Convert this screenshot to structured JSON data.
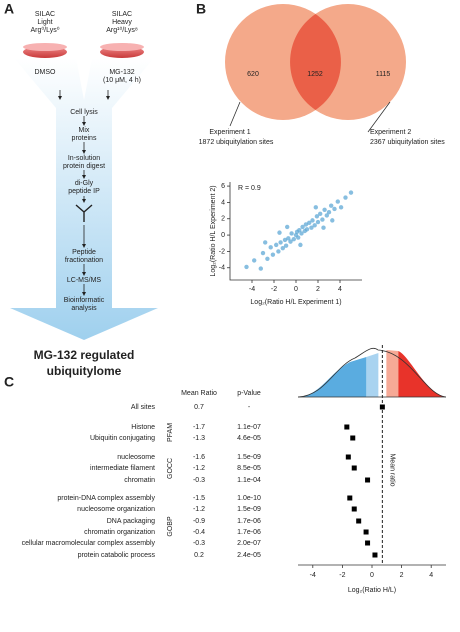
{
  "panels": {
    "a": "A",
    "b": "B",
    "c": "C"
  },
  "workflow": {
    "light": [
      "SILAC",
      "Light",
      "Arg⁰/Lys⁰"
    ],
    "light_treatment": [
      "DMSO"
    ],
    "heavy": [
      "SILAC",
      "Heavy",
      "Arg¹⁰/Lys⁸"
    ],
    "heavy_treatment": [
      "MG-132",
      "(10 μM, 4 h)"
    ],
    "steps": [
      [
        "Cell lysis"
      ],
      [
        "Mix",
        "proteins"
      ],
      [
        "In-solution",
        "protein digest"
      ],
      [
        "di-Gly",
        "peptide IP"
      ],
      [
        "Peptide",
        "fractionation"
      ],
      [
        "LC-MS/MS"
      ],
      [
        "Bioinformatic",
        "analysis"
      ]
    ],
    "result": [
      "MG-132 regulated",
      "ubiquitylome"
    ]
  },
  "venn": {
    "only_1": 620,
    "both": 1252,
    "only_2": 1115,
    "label_1": [
      "Experiment 1",
      "1872 ubiquitylation sites"
    ],
    "label_2": [
      "Experiment 2",
      "2367 ubiquitylation sites"
    ]
  },
  "chart_data": [
    {
      "type": "scatter",
      "annotation": "R = 0.9",
      "xlabel": "Log₂(Ratio H/L Experiment 1)",
      "ylabel": "Log₂(Ratio H/L Experiment 2)",
      "color": "#5fa8d6",
      "xlim": [
        -6,
        6
      ],
      "ylim": [
        -5.5,
        6.5
      ],
      "xticks": [
        -4,
        -2,
        0,
        2,
        4
      ],
      "yticks": [
        -4,
        -2,
        0,
        2,
        4,
        6
      ],
      "x": [
        -4.5,
        -3.8,
        -3.2,
        -3,
        -2.6,
        -2.3,
        -2.1,
        -1.8,
        -1.6,
        -1.4,
        -1.2,
        -1,
        -0.9,
        -0.7,
        -0.5,
        -0.4,
        -0.2,
        0,
        0.1,
        0.2,
        0.3,
        0.5,
        0.6,
        0.8,
        0.9,
        1,
        1.2,
        1.4,
        1.5,
        1.7,
        1.9,
        2,
        2.2,
        2.4,
        2.6,
        2.8,
        3,
        3.2,
        3.5,
        3.8,
        4.1,
        4.5,
        5,
        -2.8,
        -1.5,
        0.4,
        1.8,
        2.5,
        -0.8,
        3.3
      ],
      "y": [
        -3.9,
        -3.1,
        -4.1,
        -2.2,
        -2.9,
        -1.5,
        -2.4,
        -1.2,
        -2,
        -0.9,
        -1.6,
        -0.6,
        -1.3,
        -0.4,
        -0.8,
        0.2,
        -0.5,
        0,
        0.4,
        -0.3,
        0.6,
        0.2,
        1,
        0.5,
        1.3,
        0.7,
        1.5,
        0.9,
        1.8,
        1.2,
        2.3,
        1.6,
        2.6,
        1.9,
        3.1,
        2.4,
        2.8,
        3.6,
        3.2,
        4.1,
        3.4,
        4.6,
        5.2,
        -0.9,
        0.3,
        -1.2,
        3.4,
        0.9,
        1,
        1.8
      ]
    },
    {
      "type": "dot",
      "headers": [
        "Mean Ratio",
        "p-Value"
      ],
      "categories": [
        "All sites",
        "Histone",
        "Ubiquitin conjugating",
        "nucleosome",
        "intermediate filament",
        "chromatin",
        "protein-DNA complex assembly",
        "nucleosome organization",
        "DNA packaging",
        "chromatin organization",
        "cellular macromolecular complex assembly",
        "protein catabolic process"
      ],
      "values": [
        0.7,
        -1.7,
        -1.3,
        -1.6,
        -1.2,
        -0.3,
        -1.5,
        -1.2,
        -0.9,
        -0.4,
        -0.3,
        0.2
      ],
      "p_values": [
        "-",
        "1.1e-07",
        "4.6e-05",
        "1.5e-09",
        "8.5e-05",
        "1.1e-04",
        "1.0e-10",
        "1.5e-09",
        "1.7e-06",
        "1.7e-06",
        "2.0e-07",
        "2.4e-05"
      ],
      "groups": [
        {
          "name": "PFAM",
          "rows": [
            1,
            2
          ]
        },
        {
          "name": "GOCC",
          "rows": [
            3,
            5
          ]
        },
        {
          "name": "GOBP",
          "rows": [
            6,
            11
          ]
        }
      ],
      "mean_label": "Mean ratio",
      "xlabel": "Log₂(Ratio H/L)",
      "color": "#000000",
      "xlim": [
        -5,
        5
      ],
      "xticks": [
        -4,
        -2,
        0,
        2,
        4
      ]
    }
  ]
}
